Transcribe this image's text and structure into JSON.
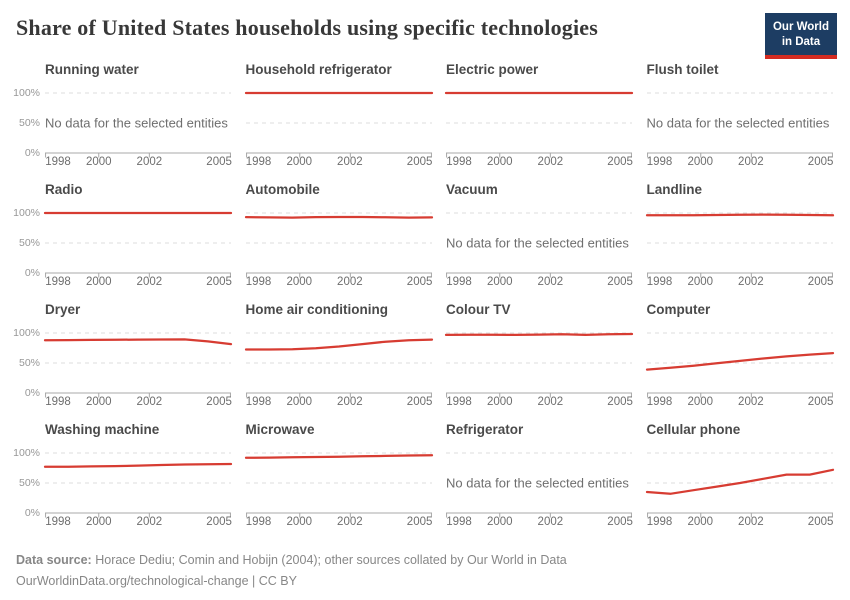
{
  "header": {
    "title": "Share of United States households using specific technologies",
    "logo": {
      "line1": "Our World",
      "line2": "in Data"
    }
  },
  "colors": {
    "line": "#d73c32",
    "gridline": "#dcdcdc",
    "axis": "#a8a8a8",
    "logo_bg": "#1d3d63",
    "logo_accent": "#d42b21"
  },
  "chart_data": {
    "type": "line",
    "layout": "small-multiples-4x4",
    "x": [
      1997,
      1998,
      1999,
      2000,
      2001,
      2002,
      2003,
      2004,
      2005
    ],
    "x_tick_labels": [
      "1998",
      "2000",
      "2002",
      "2005"
    ],
    "y_tick_labels": [
      "100%",
      "50%",
      "0%"
    ],
    "ylim": [
      0,
      100
    ],
    "unit": "%",
    "grid": "dashed horizontal gridlines at 50% and 100%",
    "legend": "none",
    "no_data_label": "No data for the selected entities",
    "panels": [
      {
        "title": "Running water",
        "values": null
      },
      {
        "title": "Household refrigerator",
        "values": [
          100,
          100,
          100,
          100,
          100,
          100,
          100,
          100,
          100
        ]
      },
      {
        "title": "Electric power",
        "values": [
          100,
          100,
          100,
          100,
          100,
          100,
          100,
          100,
          100
        ]
      },
      {
        "title": "Flush toilet",
        "values": null
      },
      {
        "title": "Radio",
        "values": [
          100,
          100,
          100,
          100,
          100,
          100,
          100,
          100,
          100
        ]
      },
      {
        "title": "Automobile",
        "values": [
          93.2,
          92.6,
          92.4,
          93.2,
          93.3,
          93.4,
          92.8,
          92.4,
          92.6
        ]
      },
      {
        "title": "Vacuum",
        "values": null
      },
      {
        "title": "Landline",
        "values": [
          96.2,
          96.2,
          96.3,
          96.6,
          97,
          97.4,
          97.2,
          96.6,
          96.1
        ]
      },
      {
        "title": "Dryer",
        "values": [
          88,
          88.2,
          88.5,
          88.7,
          89,
          89.2,
          89.4,
          86,
          81.5
        ]
      },
      {
        "title": "Home air conditioning",
        "values": [
          72.5,
          72.5,
          73,
          74.5,
          77.5,
          81.5,
          85.5,
          88,
          89
        ]
      },
      {
        "title": "Colour TV",
        "values": [
          96.8,
          97.2,
          97,
          96.8,
          97.3,
          97.8,
          96.9,
          97.8,
          98.3
        ]
      },
      {
        "title": "Computer",
        "values": [
          39,
          42,
          45.5,
          49.5,
          53.5,
          57.5,
          61,
          64,
          66.5
        ]
      },
      {
        "title": "Washing machine",
        "values": [
          77,
          77.2,
          77.6,
          78.2,
          79,
          80,
          80.8,
          81.3,
          81.6
        ]
      },
      {
        "title": "Microwave",
        "values": [
          92,
          92.4,
          93,
          93.4,
          93.9,
          94.5,
          95.2,
          95.8,
          96.4
        ]
      },
      {
        "title": "Refrigerator",
        "values": null
      },
      {
        "title": "Cellular phone",
        "values": [
          35,
          32,
          38,
          44,
          50,
          57,
          64,
          64,
          72
        ]
      }
    ]
  },
  "footer": {
    "source_label": "Data source:",
    "source_text": "Horace Dediu; Comin and Hobijn (2004); other sources collated by Our World in Data",
    "line2": "OurWorldinData.org/technological-change | CC BY"
  }
}
